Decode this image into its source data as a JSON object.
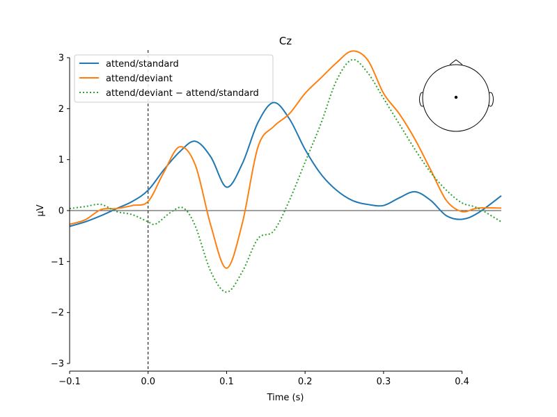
{
  "chart_data": {
    "type": "line",
    "title": "Cz",
    "xlabel": "Time (s)",
    "ylabel": "µV",
    "xlim": [
      -0.1,
      0.45
    ],
    "ylim": [
      -3.15,
      3.15
    ],
    "x_ticks": [
      -0.1,
      0.0,
      0.1,
      0.2,
      0.3,
      0.4
    ],
    "x_tick_labels": [
      "−0.1",
      "0.0",
      "0.1",
      "0.2",
      "0.3",
      "0.4"
    ],
    "y_ticks": [
      -3,
      -2,
      -1,
      0,
      1,
      2,
      3
    ],
    "y_tick_labels": [
      "−3",
      "−2",
      "−1",
      "0",
      "1",
      "2",
      "3"
    ],
    "zero_line": true,
    "event_marker_x": 0.0,
    "legend_position": "top-left",
    "grid": false,
    "inset": "sensor-head-map-top-right",
    "series": [
      {
        "name": "attend/standard",
        "color": "#1f77b4",
        "style": "solid",
        "x": [
          -0.1,
          -0.08,
          -0.06,
          -0.04,
          -0.02,
          0.0,
          0.02,
          0.04,
          0.06,
          0.08,
          0.1,
          0.12,
          0.14,
          0.16,
          0.18,
          0.2,
          0.22,
          0.24,
          0.26,
          0.28,
          0.3,
          0.32,
          0.34,
          0.36,
          0.38,
          0.4,
          0.42,
          0.45
        ],
        "y": [
          -0.31,
          -0.22,
          -0.1,
          0.04,
          0.18,
          0.4,
          0.8,
          1.15,
          1.36,
          1.05,
          0.46,
          0.92,
          1.73,
          2.12,
          1.8,
          1.2,
          0.72,
          0.4,
          0.2,
          0.12,
          0.1,
          0.25,
          0.37,
          0.2,
          -0.1,
          -0.17,
          -0.05,
          0.29
        ]
      },
      {
        "name": "attend/deviant",
        "color": "#ff7f0e",
        "style": "solid",
        "x": [
          -0.1,
          -0.08,
          -0.06,
          -0.04,
          -0.02,
          0.0,
          0.02,
          0.04,
          0.06,
          0.08,
          0.1,
          0.12,
          0.14,
          0.16,
          0.18,
          0.2,
          0.22,
          0.24,
          0.26,
          0.28,
          0.3,
          0.32,
          0.34,
          0.36,
          0.38,
          0.4,
          0.42,
          0.45
        ],
        "y": [
          -0.27,
          -0.18,
          0.02,
          0.04,
          0.1,
          0.18,
          0.75,
          1.25,
          0.9,
          -0.3,
          -1.13,
          -0.25,
          1.25,
          1.65,
          1.9,
          2.3,
          2.6,
          2.9,
          3.13,
          2.95,
          2.3,
          1.9,
          1.4,
          0.8,
          0.2,
          -0.02,
          0.05,
          0.05
        ]
      },
      {
        "name": "attend/deviant − attend/standard",
        "color": "#2ca02c",
        "style": "dotted",
        "x": [
          -0.1,
          -0.08,
          -0.06,
          -0.04,
          -0.02,
          0.0,
          0.01,
          0.03,
          0.045,
          0.06,
          0.08,
          0.1,
          0.12,
          0.14,
          0.16,
          0.18,
          0.2,
          0.22,
          0.24,
          0.26,
          0.28,
          0.3,
          0.32,
          0.34,
          0.36,
          0.38,
          0.4,
          0.42,
          0.45
        ],
        "y": [
          0.04,
          0.08,
          0.12,
          -0.02,
          -0.08,
          -0.22,
          -0.26,
          -0.02,
          0.05,
          -0.3,
          -1.2,
          -1.6,
          -1.2,
          -0.55,
          -0.4,
          0.2,
          0.95,
          1.7,
          2.55,
          2.96,
          2.7,
          2.2,
          1.7,
          1.2,
          0.75,
          0.4,
          0.15,
          0.05,
          -0.22
        ]
      }
    ]
  }
}
